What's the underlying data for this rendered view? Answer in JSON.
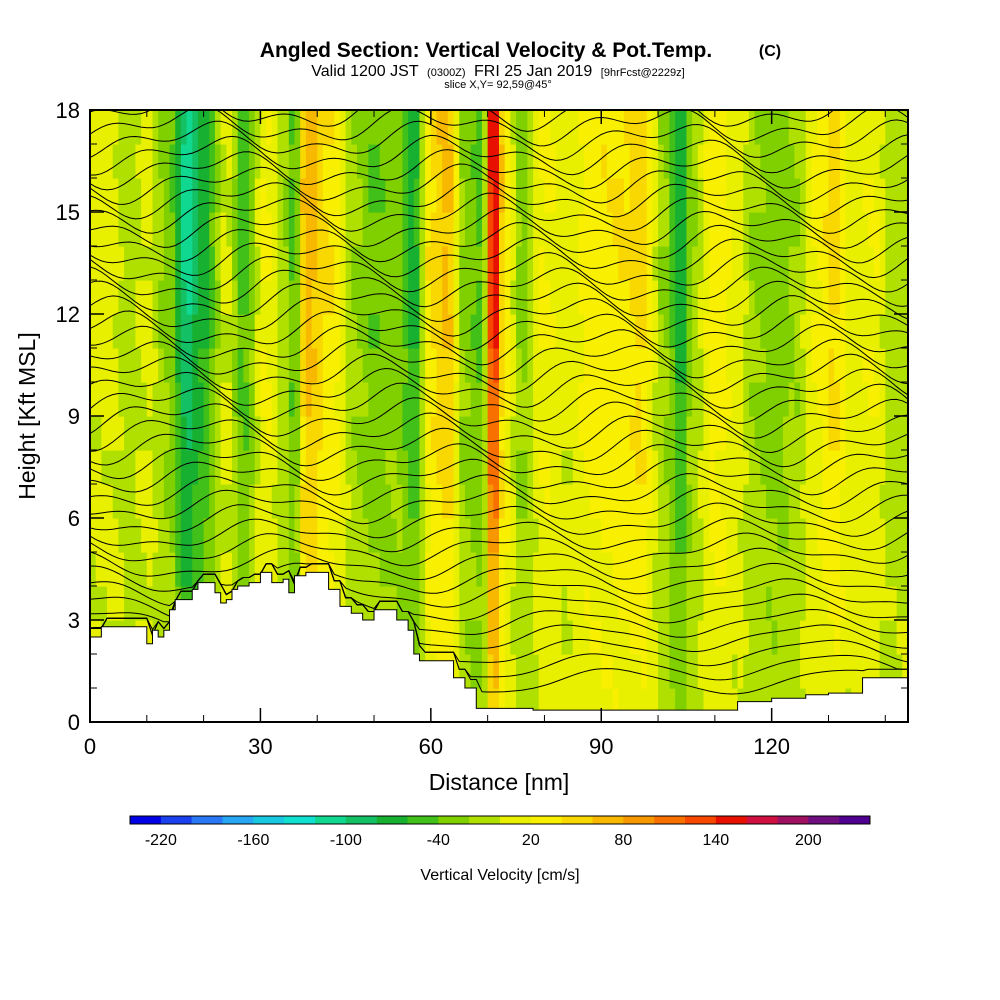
{
  "chart_data": {
    "type": "heatmap",
    "title": "Angled Section: Vertical Velocity & Pot.Temp.",
    "title_unit": "(C)",
    "subtitle_parts": [
      "Valid 1200 JST",
      "(0300Z)",
      "FRI 25 Jan 2019",
      "[9hrFcst@2229z]"
    ],
    "subtitle2": "slice X,Y= 92,59@45°",
    "xlabel": "Distance [nm]",
    "ylabel": "Height [Kft MSL]",
    "xlim": [
      0,
      144
    ],
    "ylim": [
      0,
      18
    ],
    "x_ticks": [
      "0",
      "30",
      "60",
      "90",
      "120"
    ],
    "y_ticks": [
      "0",
      "3",
      "6",
      "9",
      "12",
      "15",
      "18"
    ],
    "colorbar": {
      "label": "Vertical Velocity [cm/s]",
      "range": [
        -240,
        240
      ],
      "step": 20,
      "tick_values": [
        -220,
        -160,
        -100,
        -40,
        20,
        80,
        140,
        200
      ],
      "tick_labels": [
        "-220",
        "-160",
        "-100",
        "-40",
        "20",
        "80",
        "140",
        "200"
      ],
      "colors": [
        "#0000e6",
        "#1a40f0",
        "#2a78f5",
        "#26a6f3",
        "#18c8e0",
        "#10e0d0",
        "#10d890",
        "#14c064",
        "#18b030",
        "#40c018",
        "#80d000",
        "#b0e000",
        "#e8f000",
        "#f8f000",
        "#f8d800",
        "#f8b800",
        "#f89800",
        "#f87000",
        "#f84800",
        "#e81000",
        "#d01040",
        "#a01060",
        "#701080",
        "#500090"
      ]
    },
    "terrain_profile_kft": [
      [
        0,
        2.5
      ],
      [
        2,
        2.8
      ],
      [
        8,
        2.8
      ],
      [
        10,
        2.3
      ],
      [
        11,
        2.7
      ],
      [
        12,
        2.5
      ],
      [
        13,
        2.7
      ],
      [
        14,
        3.3
      ],
      [
        15,
        3.6
      ],
      [
        16,
        3.6
      ],
      [
        17,
        3.6
      ],
      [
        18,
        3.9
      ],
      [
        19,
        4.1
      ],
      [
        21,
        4.1
      ],
      [
        22,
        3.8
      ],
      [
        23,
        3.5
      ],
      [
        24,
        3.6
      ],
      [
        25,
        3.9
      ],
      [
        26,
        4.0
      ],
      [
        28,
        4.1
      ],
      [
        30,
        4.4
      ],
      [
        32,
        4.1
      ],
      [
        34,
        4.2
      ],
      [
        35,
        3.8
      ],
      [
        36,
        4.3
      ],
      [
        38,
        4.4
      ],
      [
        40,
        4.4
      ],
      [
        42,
        3.9
      ],
      [
        44,
        3.4
      ],
      [
        46,
        3.2
      ],
      [
        48,
        3.0
      ],
      [
        50,
        3.3
      ],
      [
        52,
        3.3
      ],
      [
        54,
        3.0
      ],
      [
        56,
        2.7
      ],
      [
        57,
        2.0
      ],
      [
        58,
        1.8
      ],
      [
        62,
        1.8
      ],
      [
        64,
        1.3
      ],
      [
        66,
        1.0
      ],
      [
        68,
        0.4
      ],
      [
        72,
        0.4
      ],
      [
        78,
        0.35
      ],
      [
        90,
        0.35
      ],
      [
        100,
        0.35
      ],
      [
        110,
        0.35
      ],
      [
        114,
        0.6
      ],
      [
        120,
        0.7
      ],
      [
        126,
        0.8
      ],
      [
        130,
        0.85
      ],
      [
        136,
        1.3
      ],
      [
        144,
        1.3
      ]
    ],
    "vertical_velocity_columns_cm_s": [
      [
        4,
        6
      ],
      [
        7,
        -14
      ],
      [
        10,
        6
      ],
      [
        14,
        -30
      ],
      [
        17,
        -110
      ],
      [
        20,
        -70
      ],
      [
        24,
        6
      ],
      [
        27,
        -50
      ],
      [
        31,
        24
      ],
      [
        34,
        -10
      ],
      [
        36,
        -50
      ],
      [
        38,
        76
      ],
      [
        42,
        42
      ],
      [
        47,
        -20
      ],
      [
        50,
        -40
      ],
      [
        54,
        -30
      ],
      [
        57,
        -70
      ],
      [
        60,
        44
      ],
      [
        63,
        66
      ],
      [
        66,
        -30
      ],
      [
        69,
        -45
      ],
      [
        71,
        170
      ],
      [
        73,
        36
      ],
      [
        76,
        -30
      ],
      [
        80,
        24
      ],
      [
        84,
        6
      ],
      [
        88,
        32
      ],
      [
        94,
        40
      ],
      [
        97,
        52
      ],
      [
        101,
        -20
      ],
      [
        104,
        -75
      ],
      [
        106,
        -20
      ],
      [
        110,
        36
      ],
      [
        114,
        10
      ],
      [
        117,
        -20
      ],
      [
        121,
        -35
      ],
      [
        124,
        -20
      ],
      [
        128,
        24
      ],
      [
        131,
        50
      ],
      [
        134,
        10
      ],
      [
        138,
        20
      ],
      [
        141,
        -10
      ]
    ],
    "isentrope_levels_count": 40
  }
}
